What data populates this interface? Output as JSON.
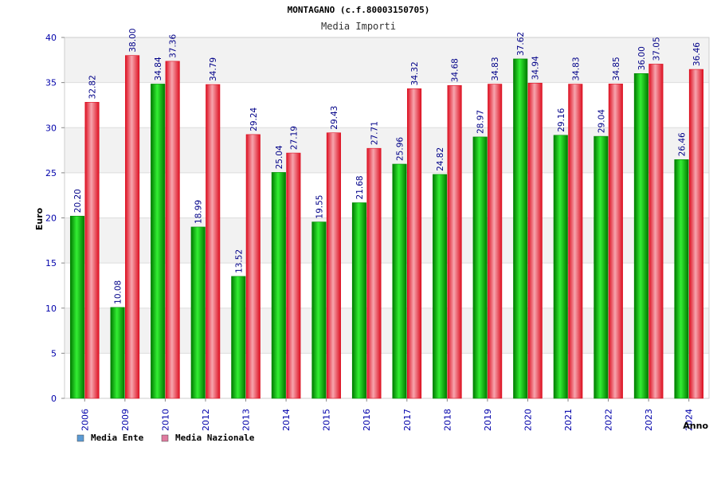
{
  "chart_data": {
    "type": "bar",
    "title": "MONTAGANO (c.f.80003150705)",
    "subtitle": "Media Importi",
    "xlabel": "Anno",
    "ylabel": "Euro",
    "ylim": [
      0,
      40
    ],
    "yticks": [
      "0",
      "5",
      "10",
      "15",
      "20",
      "25",
      "30",
      "35",
      "40"
    ],
    "grid": true,
    "legend_position": "bottom-left",
    "categories": [
      "2006",
      "2009",
      "2010",
      "2012",
      "2013",
      "2014",
      "2015",
      "2016",
      "2017",
      "2018",
      "2019",
      "2020",
      "2021",
      "2022",
      "2023",
      "2024"
    ],
    "series": [
      {
        "name": "Media Ente",
        "color": "#00bb00",
        "legend_color": "#5b9bd5",
        "values": [
          20.2,
          10.08,
          34.84,
          18.99,
          13.52,
          25.04,
          19.55,
          21.68,
          25.96,
          24.82,
          28.97,
          37.62,
          29.16,
          29.04,
          36.0,
          26.46
        ],
        "labels": [
          "20.20",
          "10.08",
          "34.84",
          "18.99",
          "13.52",
          "25.04",
          "19.55",
          "21.68",
          "25.96",
          "24.82",
          "28.97",
          "37.62",
          "29.16",
          "29.04",
          "36.00",
          "26.46"
        ]
      },
      {
        "name": "Media Nazionale",
        "color": "#ee2233",
        "legend_color": "#e07ba0",
        "values": [
          32.82,
          38.0,
          37.36,
          34.79,
          29.24,
          27.19,
          29.43,
          27.71,
          34.32,
          34.68,
          34.83,
          34.94,
          34.83,
          34.85,
          37.05,
          36.46
        ],
        "labels": [
          "32.82",
          "38.00",
          "37.36",
          "34.79",
          "29.24",
          "27.19",
          "29.43",
          "27.71",
          "34.32",
          "34.68",
          "34.83",
          "34.94",
          "34.83",
          "34.85",
          "37.05",
          "36.46"
        ]
      }
    ]
  }
}
